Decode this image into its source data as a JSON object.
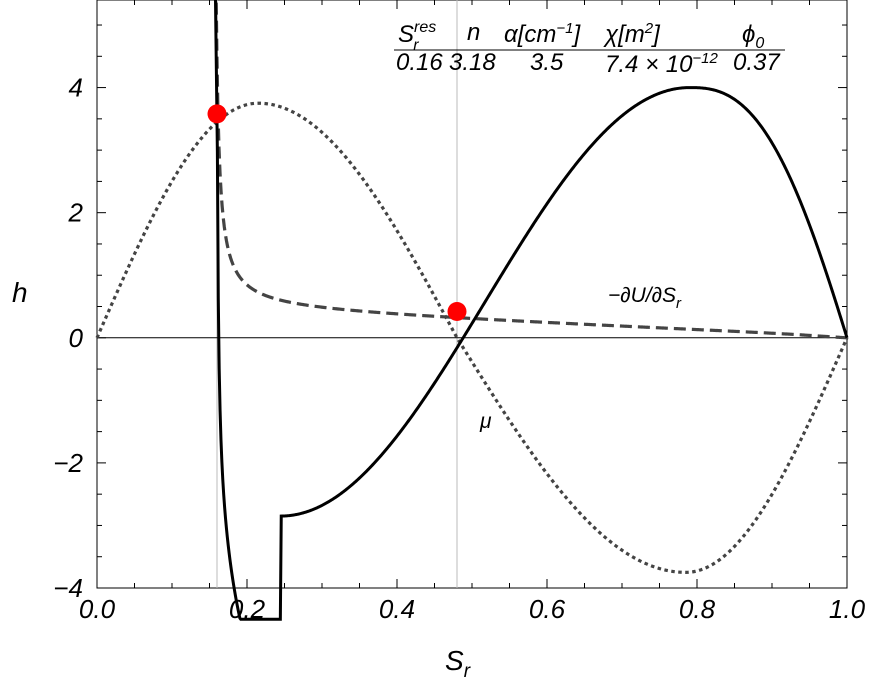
{
  "chart_data": {
    "type": "line",
    "xlabel": "S",
    "xlabel_sub": "r",
    "ylabel": "h",
    "xlim": [
      0.0,
      1.0
    ],
    "ylim": [
      -4,
      5.4
    ],
    "x_ticks": [
      "0.0",
      "0.2",
      "0.4",
      "0.6",
      "0.8",
      "1.0"
    ],
    "x_tick_values": [
      0.0,
      0.2,
      0.4,
      0.6,
      0.8,
      1.0
    ],
    "y_ticks": [
      "−4",
      "−2",
      "0",
      "2",
      "4"
    ],
    "y_tick_values": [
      -4,
      -2,
      0,
      2,
      4
    ],
    "vertical_lines": [
      0.16,
      0.48
    ],
    "parameter_table": [
      {
        "name": "S",
        "sub": "r",
        "sup": "res",
        "value": "0.16"
      },
      {
        "name": "n",
        "value": "3.18"
      },
      {
        "name": "α[cm",
        "sup": "−1",
        "suffix": "]",
        "value": "3.5"
      },
      {
        "name": "χ[m",
        "sup": "2",
        "suffix": "]",
        "value": "7.4 × 10",
        "value_sup": "−12"
      },
      {
        "name": "ϕ",
        "sub": "0",
        "value": "0.37"
      }
    ],
    "series": [
      {
        "label": "h",
        "style": "solid",
        "color": "#000000",
        "x_start": 0.158,
        "x_end": 1.0
      },
      {
        "label_text": "−∂U/∂S",
        "label_sub": "r",
        "style": "dashed",
        "color": "#444444",
        "x_start": 0.155,
        "x_end": 1.0
      },
      {
        "label_text": "μ",
        "style": "dotted",
        "color": "#444444",
        "x_start": 0.0,
        "x_end": 1.0,
        "peak": [
          0.215,
          3.75
        ],
        "trough": [
          0.785,
          -3.75
        ]
      }
    ],
    "points": [
      {
        "x": 0.16,
        "y": 3.58,
        "color": "#ff0000"
      },
      {
        "x": 0.48,
        "y": 0.42,
        "color": "#ff0000"
      }
    ],
    "solid_curve_features": {
      "min": [
        0.245,
        -2.85
      ],
      "max": [
        0.79,
        4.0
      ],
      "zero_crossing": 0.48
    }
  }
}
